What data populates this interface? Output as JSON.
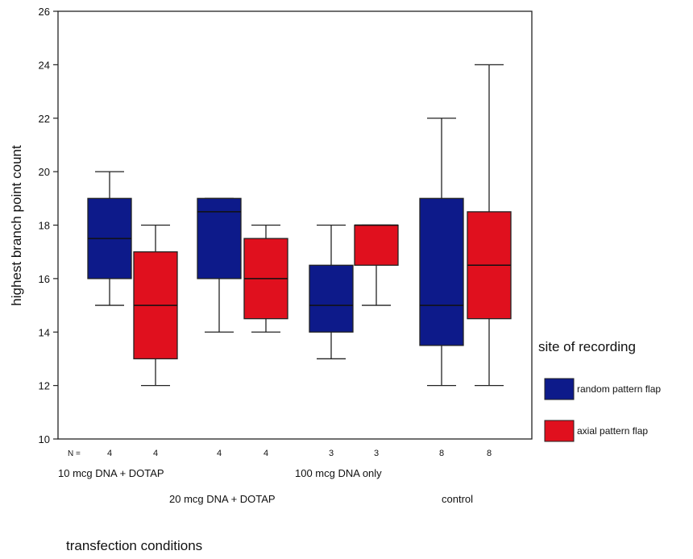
{
  "chart_data": {
    "type": "box",
    "title": "",
    "xlabel": "transfection conditions",
    "ylabel": "highest branch point count",
    "ylim": [
      10,
      26
    ],
    "yticks": [
      10,
      12,
      14,
      16,
      18,
      20,
      22,
      24,
      26
    ],
    "n_prefix": "N =",
    "legend": {
      "title": "site of recording",
      "placement": "right",
      "entries": [
        {
          "label": "random pattern flap",
          "color": "#0d1a8a"
        },
        {
          "label": "axial pattern flap",
          "color": "#e0101e"
        }
      ]
    },
    "groups": [
      {
        "label": "10 mcg DNA + DOTAP",
        "boxes": [
          {
            "series": "random pattern flap",
            "n": "4",
            "min": 15,
            "q1": 16,
            "median": 17.5,
            "q3": 19,
            "max": 20
          },
          {
            "series": "axial pattern flap",
            "n": "4",
            "min": 12,
            "q1": 13,
            "median": 15,
            "q3": 17,
            "max": 18
          }
        ]
      },
      {
        "label": "20 mcg DNA + DOTAP",
        "boxes": [
          {
            "series": "random pattern flap",
            "n": "4",
            "min": 14,
            "q1": 16,
            "median": 18.5,
            "q3": 19,
            "max": 19
          },
          {
            "series": "axial pattern flap",
            "n": "4",
            "min": 14,
            "q1": 14.5,
            "median": 16,
            "q3": 17.5,
            "max": 18
          }
        ]
      },
      {
        "label": "100 mcg DNA only",
        "boxes": [
          {
            "series": "random pattern flap",
            "n": "3",
            "min": 13,
            "q1": 14,
            "median": 15,
            "q3": 16.5,
            "max": 18
          },
          {
            "series": "axial pattern flap",
            "n": "3",
            "min": 15,
            "q1": 16.5,
            "median": 18,
            "q3": 18,
            "max": 18
          }
        ]
      },
      {
        "label": "control",
        "boxes": [
          {
            "series": "random pattern flap",
            "n": "8",
            "min": 12,
            "q1": 13.5,
            "median": 15,
            "q3": 19,
            "max": 22
          },
          {
            "series": "axial pattern flap",
            "n": "8",
            "min": 12,
            "q1": 14.5,
            "median": 16.5,
            "q3": 18.5,
            "max": 24
          }
        ]
      }
    ]
  }
}
